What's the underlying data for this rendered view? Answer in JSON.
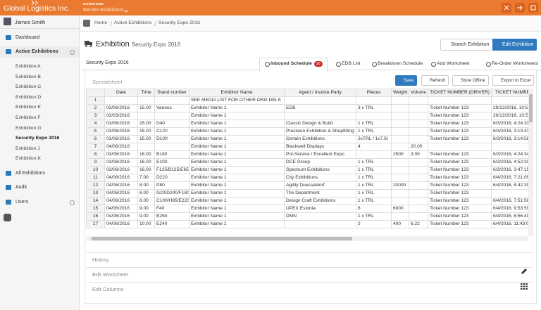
{
  "header": {
    "brand": "Global Logistics Inc.",
    "section": "EXHIBITIONS",
    "menu": "Recent exhibitions"
  },
  "sidebar": {
    "user": "James Smith",
    "items": [
      {
        "label": "Dashboard"
      },
      {
        "label": "Active Exhibitions",
        "children": [
          "Exhibition A",
          "Exhibition B",
          "Exhibition C",
          "Exhibition D",
          "Exhibition E",
          "Exhibition F",
          "Exhibition G",
          "Security Expo 2016",
          "Exhibition J",
          "Exhibition K"
        ]
      },
      {
        "label": "All Exhibitons"
      },
      {
        "label": "Audit"
      },
      {
        "label": "Users"
      }
    ]
  },
  "breadcrumb": [
    "Home",
    "Active Exhibitions",
    "Security Expo 2016"
  ],
  "page": {
    "title": "Exhibition",
    "subtitle": "Security Expo 2016",
    "buttons": [
      "Search Exhibition",
      "Edit Exhibition"
    ]
  },
  "tabs": {
    "context": "Security Expo 2016",
    "items": [
      {
        "label": "Inbound Schedule",
        "badge": "20"
      },
      {
        "label": "EDB List"
      },
      {
        "label": "Breakdown Schedule"
      },
      {
        "label": "Add Worksheet"
      },
      {
        "label": "Re-Order Worksheets"
      }
    ]
  },
  "panel": {
    "title": "Spreadsheet",
    "buttons": [
      "Save",
      "Refresh",
      "Store Offline",
      "Export to Excel"
    ]
  },
  "table": {
    "columns": [
      null,
      "Date",
      "Time",
      "Stand number",
      "Exhibitor Name",
      "Agent / Invoice Party",
      "Pieces",
      "Weight",
      "Volume",
      "TICKET NUMBER (DRIVER)",
      "TICKET NUMBE"
    ],
    "rows": [
      [
        "1",
        null,
        null,
        null,
        "SEE MEDIA LIST FOR OTHER ORG DELS",
        null,
        null,
        null,
        null,
        null,
        null
      ],
      [
        "2",
        "03/06/2016",
        "15.00",
        "Various",
        "Exhibitor Name 1",
        "EDB",
        "3 x TRL",
        null,
        null,
        "Ticket Number 123",
        "29/12/2016, 10:5"
      ],
      [
        "3",
        "03/03/2016",
        null,
        null,
        "Exhibitor Name 1",
        null,
        null,
        null,
        null,
        "Ticket Number 123",
        "29/12/2016, 10:5"
      ],
      [
        "4",
        "03/06/2016",
        "15.00",
        "D40",
        "Exhibitor Name 1",
        "Classic Design & Build",
        "1 x TRL",
        null,
        null,
        "Ticket Number 123",
        "6/3/2016, 4:24:31"
      ],
      [
        "5",
        "03/06/2016",
        "15.00",
        "C120",
        "Exhibitor Name 1",
        "Precision Exhibition & Shopfitting",
        "1 x TRL",
        null,
        null,
        "Ticket Number 123",
        "6/3/2016, 3:13:43"
      ],
      [
        "6",
        "03/06/2016",
        "15.00",
        "D100",
        "Exhibitor Name 1",
        "Certain Exhibitions",
        "2xTRL / 1x7.5t",
        null,
        null,
        "Ticket Number 123",
        "6/3/2016, 3:14:58"
      ],
      [
        "7",
        "04/06/2016",
        null,
        null,
        "Exhibitor Name 1",
        "Blackwell Displays",
        "4",
        null,
        "20.00",
        null,
        null
      ],
      [
        "8",
        "03/06/2016",
        "16.00",
        "B180",
        "Exhibitor Name 1",
        "Pol-Service / Excellent Expo",
        null,
        "2500",
        "3.00",
        "Ticket Number 123",
        "6/3/2016, 4:24:34"
      ],
      [
        "9",
        "03/06/2016",
        "16.00",
        "E100",
        "Exhibitor Name 1",
        "DCE Group",
        "1 x TRL",
        null,
        null,
        "Ticket Number 123",
        "6/3/2016, 4:52:30"
      ],
      [
        "10",
        "03/06/2016",
        "16.00",
        "F125/B125/E65",
        "Exhibitor Name 1",
        "Spectrum Exhibitions",
        "1 x TRL",
        null,
        null,
        "Ticket Number 123",
        "6/3/2016, 3:47:15"
      ],
      [
        "11",
        "04/06/2016",
        "7.00",
        "D220",
        "Exhibitor Name 1",
        "City Exhibitions",
        "1 x TRL",
        null,
        null,
        "Ticket Number 123",
        "6/4/2016, 7:21:09"
      ],
      [
        "12",
        "04/06/2016",
        "8.00",
        "P80",
        "Exhibitor Name 1",
        "Agility Duesseldorf",
        "1 x TRL",
        "20000",
        null,
        "Ticket Number 123",
        "6/4/2016, 8:42:39"
      ],
      [
        "13",
        "04/06/2016",
        "8.00",
        "G20/D240/F180",
        "Exhibitor Name 1",
        "The Department",
        "1 x TRL",
        null,
        null,
        "Ticket Number 123",
        null
      ],
      [
        "14",
        "04/06/2016",
        "8.00",
        "C100/H95/E220",
        "Exhibitor Name 1",
        "Design Craft Exhibitions",
        "1 x TRL",
        null,
        null,
        "Ticket Number 123",
        "6/4/2016, 7:51:56"
      ],
      [
        "15",
        "04/06/2016",
        "9.00",
        "F40",
        "Exhibitor Name 1",
        "UPEX Estonia",
        "6",
        "6000",
        null,
        "Ticket Number 123",
        "6/4/2016, 9:53:59"
      ],
      [
        "16",
        "04/06/2016",
        "9.00",
        "B260",
        "Exhibitor Name 1",
        "DMN",
        "1 x TRL",
        null,
        null,
        "Ticket Number 123",
        "6/4/2016, 8:56:40"
      ],
      [
        "17",
        "04/06/2016",
        "10.00",
        "E240",
        "Exhibitor Name 1",
        null,
        "2",
        "400",
        "6.22",
        "Ticket Number 123",
        "6/4/2016, 11:43:0"
      ]
    ]
  },
  "sections": [
    "History",
    "Edit Worksheet",
    "Edit Columns"
  ]
}
